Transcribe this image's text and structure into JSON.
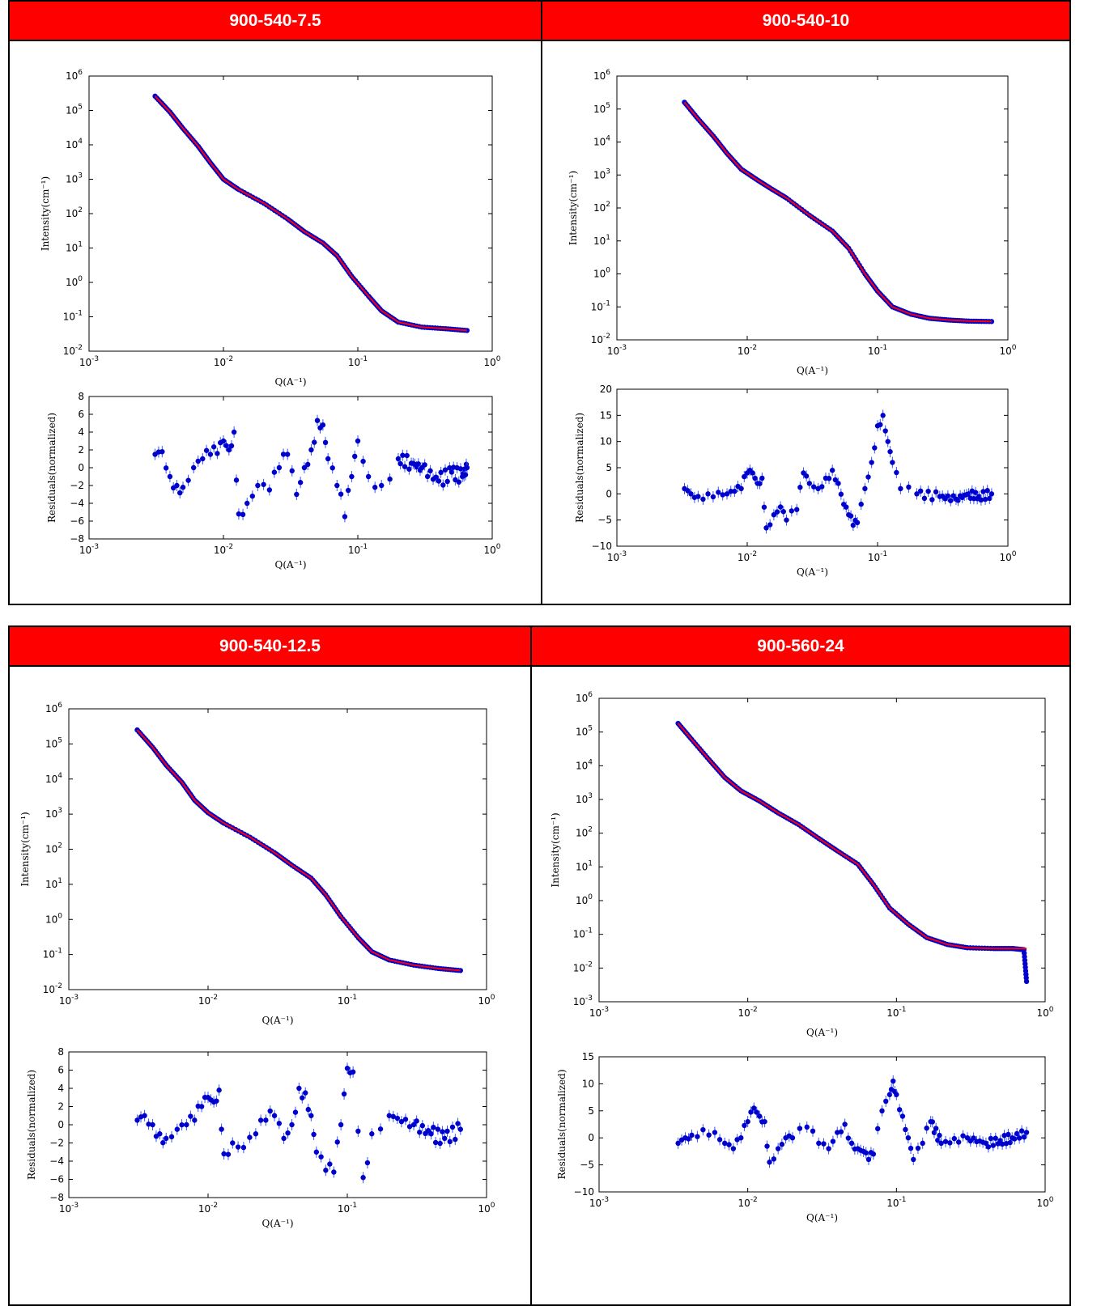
{
  "chart_data": [
    {
      "panel_title": "900-540-7.5",
      "type": "scatter",
      "main": {
        "xlabel": "Q(A⁻¹)",
        "ylabel": "Intensity(cm⁻¹)",
        "xscale": "log",
        "yscale": "log",
        "xlim": [
          0.001,
          1
        ],
        "ylim": [
          0.01,
          1000000
        ],
        "x_ticks": [
          "10^-3",
          "10^-2",
          "10^-1",
          "10^0"
        ],
        "y_ticks": [
          "10^-2",
          "10^-1",
          "10^0",
          "10^1",
          "10^2",
          "10^3",
          "10^4",
          "10^5",
          "10^6"
        ],
        "series": [
          {
            "color": "#0000cc",
            "marker": "circle",
            "x": [
              0.0031,
              0.004,
              0.005,
              0.0065,
              0.008,
              0.01,
              0.013,
              0.02,
              0.03,
              0.04,
              0.055,
              0.07,
              0.09,
              0.12,
              0.15,
              0.2,
              0.3,
              0.45,
              0.65
            ],
            "y": [
              260000,
              90000,
              30000,
              9000,
              3000,
              1000,
              500,
              200,
              70,
              30,
              14,
              6,
              1.5,
              0.4,
              0.15,
              0.07,
              0.05,
              0.045,
              0.04
            ]
          },
          {
            "color": "#ff0000",
            "marker": "line",
            "x": [
              0.0031,
              0.004,
              0.005,
              0.0065,
              0.008,
              0.01,
              0.013,
              0.02,
              0.03,
              0.04,
              0.055,
              0.07,
              0.09,
              0.12,
              0.15,
              0.2,
              0.3,
              0.45,
              0.65
            ],
            "y": [
              260000,
              90000,
              30000,
              9000,
              3000,
              1000,
              500,
              200,
              70,
              30,
              14,
              6,
              1.5,
              0.4,
              0.15,
              0.07,
              0.05,
              0.045,
              0.04
            ]
          }
        ]
      },
      "residuals": {
        "xlabel": "Q(A⁻¹)",
        "ylabel": "Residuals(normalized)",
        "xscale": "log",
        "xlim": [
          0.001,
          1
        ],
        "ylim": [
          -8,
          8
        ],
        "yticks": [
          -8,
          -6,
          -4,
          -2,
          0,
          2,
          4,
          6,
          8
        ],
        "x_ticks": [
          "10^-3",
          "10^-2",
          "10^-1",
          "10^0"
        ],
        "x": [
          0.0031,
          0.0035,
          0.004,
          0.0045,
          0.005,
          0.006,
          0.007,
          0.008,
          0.009,
          0.01,
          0.011,
          0.012,
          0.013,
          0.015,
          0.018,
          0.022,
          0.026,
          0.03,
          0.035,
          0.04,
          0.045,
          0.05,
          0.055,
          0.06,
          0.07,
          0.08,
          0.09,
          0.1,
          0.12,
          0.15,
          0.2,
          0.25,
          0.3,
          0.4,
          0.5,
          0.6,
          0.65
        ],
        "y": [
          1.5,
          1.8,
          -1,
          -2,
          -2.2,
          0,
          1,
          1.5,
          1.6,
          3,
          2,
          4,
          -5.2,
          -4,
          -2,
          -2.5,
          0,
          1.5,
          -3,
          0,
          2,
          5.3,
          4.8,
          1,
          -2,
          -5.5,
          -1,
          3,
          -1,
          -2,
          1,
          0.5,
          0,
          -1.5,
          -0.5,
          -1,
          0
        ]
      }
    },
    {
      "panel_title": "900-540-10",
      "type": "scatter",
      "main": {
        "xlabel": "Q(A⁻¹)",
        "ylabel": "Intensity(cm⁻¹)",
        "xscale": "log",
        "yscale": "log",
        "xlim": [
          0.001,
          1
        ],
        "ylim": [
          0.01,
          1000000
        ],
        "x_ticks": [
          "10^-3",
          "10^-2",
          "10^-1",
          "10^0"
        ],
        "y_ticks": [
          "10^-2",
          "10^-1",
          "10^0",
          "10^1",
          "10^2",
          "10^3",
          "10^4",
          "10^5",
          "10^6"
        ],
        "series": [
          {
            "color": "#0000cc",
            "marker": "circle",
            "x": [
              0.0033,
              0.0042,
              0.0055,
              0.007,
              0.009,
              0.012,
              0.015,
              0.02,
              0.03,
              0.045,
              0.06,
              0.08,
              0.1,
              0.13,
              0.18,
              0.25,
              0.35,
              0.5,
              0.75
            ],
            "y": [
              160000,
              50000,
              15000,
              4500,
              1500,
              700,
              400,
              200,
              60,
              20,
              6,
              1,
              0.3,
              0.1,
              0.06,
              0.045,
              0.04,
              0.037,
              0.036
            ]
          },
          {
            "color": "#ff0000",
            "marker": "line",
            "x": [
              0.0033,
              0.0042,
              0.0055,
              0.007,
              0.009,
              0.012,
              0.015,
              0.02,
              0.03,
              0.045,
              0.06,
              0.08,
              0.1,
              0.13,
              0.18,
              0.25,
              0.35,
              0.5,
              0.75
            ],
            "y": [
              160000,
              50000,
              15000,
              4500,
              1500,
              700,
              400,
              200,
              60,
              20,
              6,
              1,
              0.3,
              0.1,
              0.06,
              0.045,
              0.04,
              0.037,
              0.036
            ]
          }
        ]
      },
      "residuals": {
        "xlabel": "Q(A⁻¹)",
        "ylabel": "Residuals(normalized)",
        "xscale": "log",
        "xlim": [
          0.001,
          1
        ],
        "ylim": [
          -10,
          20
        ],
        "yticks": [
          -10,
          -5,
          0,
          5,
          10,
          15,
          20
        ],
        "x_ticks": [
          "10^-3",
          "10^-2",
          "10^-1",
          "10^0"
        ],
        "x": [
          0.0033,
          0.0037,
          0.0042,
          0.005,
          0.006,
          0.007,
          0.008,
          0.009,
          0.01,
          0.011,
          0.012,
          0.013,
          0.014,
          0.016,
          0.018,
          0.02,
          0.024,
          0.027,
          0.03,
          0.035,
          0.04,
          0.045,
          0.05,
          0.055,
          0.06,
          0.065,
          0.07,
          0.08,
          0.09,
          0.1,
          0.11,
          0.12,
          0.13,
          0.15,
          0.2,
          0.3,
          0.4,
          0.5,
          0.6,
          0.75
        ],
        "y": [
          1,
          0,
          -0.5,
          0,
          0.3,
          0,
          0.5,
          1,
          4,
          4,
          2,
          3,
          -6.5,
          -4,
          -2.5,
          -5,
          -3,
          4,
          2,
          1,
          3,
          4.5,
          2,
          -2,
          -4,
          -6,
          -5.5,
          1,
          6,
          13,
          15,
          10,
          6,
          1,
          0,
          -0.5,
          -1,
          0,
          -0.5,
          0
        ]
      }
    },
    {
      "panel_title": "900-540-12.5",
      "type": "scatter",
      "main": {
        "xlabel": "Q(A⁻¹)",
        "ylabel": "Intensity(cm⁻¹)",
        "xscale": "log",
        "yscale": "log",
        "xlim": [
          0.001,
          1
        ],
        "ylim": [
          0.01,
          1000000
        ],
        "x_ticks": [
          "10^-3",
          "10^-2",
          "10^-1",
          "10^0"
        ],
        "y_ticks": [
          "10^-2",
          "10^-1",
          "10^0",
          "10^1",
          "10^2",
          "10^3",
          "10^4",
          "10^5",
          "10^6"
        ],
        "series": [
          {
            "color": "#0000cc",
            "marker": "circle",
            "x": [
              0.0031,
              0.004,
              0.005,
              0.0065,
              0.008,
              0.01,
              0.013,
              0.02,
              0.03,
              0.04,
              0.055,
              0.07,
              0.09,
              0.12,
              0.15,
              0.2,
              0.3,
              0.45,
              0.65
            ],
            "y": [
              250000,
              80000,
              25000,
              8000,
              2500,
              1100,
              550,
              220,
              80,
              35,
              15,
              5,
              1.2,
              0.3,
              0.12,
              0.07,
              0.05,
              0.04,
              0.035
            ]
          },
          {
            "color": "#ff0000",
            "marker": "line",
            "x": [
              0.0031,
              0.004,
              0.005,
              0.0065,
              0.008,
              0.01,
              0.013,
              0.02,
              0.03,
              0.04,
              0.055,
              0.07,
              0.09,
              0.12,
              0.15,
              0.2,
              0.3,
              0.45,
              0.65
            ],
            "y": [
              250000,
              80000,
              25000,
              8000,
              2500,
              1100,
              550,
              220,
              80,
              35,
              15,
              5,
              1.2,
              0.3,
              0.12,
              0.07,
              0.05,
              0.04,
              0.035
            ]
          }
        ]
      },
      "residuals": {
        "xlabel": "Q(A⁻¹)",
        "ylabel": "Residuals(normalized)",
        "xscale": "log",
        "xlim": [
          0.001,
          1
        ],
        "ylim": [
          -8,
          8
        ],
        "yticks": [
          -8,
          -6,
          -4,
          -2,
          0,
          2,
          4,
          6,
          8
        ],
        "x_ticks": [
          "10^-3",
          "10^-2",
          "10^-1",
          "10^0"
        ],
        "x": [
          0.0031,
          0.0035,
          0.004,
          0.0045,
          0.005,
          0.006,
          0.007,
          0.008,
          0.009,
          0.01,
          0.011,
          0.012,
          0.013,
          0.015,
          0.018,
          0.022,
          0.026,
          0.03,
          0.035,
          0.04,
          0.045,
          0.05,
          0.055,
          0.06,
          0.07,
          0.08,
          0.09,
          0.1,
          0.11,
          0.13,
          0.15,
          0.2,
          0.3,
          0.4,
          0.5,
          0.65
        ],
        "y": [
          0.5,
          1,
          0,
          -1,
          -1.5,
          -0.5,
          0,
          0.5,
          2,
          3,
          2.5,
          3.8,
          -3.2,
          -2,
          -2.5,
          -1,
          0.5,
          1,
          -1.5,
          0,
          4,
          3.5,
          1,
          -3,
          -5,
          -5.2,
          0,
          6.2,
          5.8,
          -5.8,
          -1,
          1,
          0,
          -1,
          -1.5,
          -0.5
        ]
      }
    },
    {
      "panel_title": "900-560-24",
      "type": "scatter",
      "main": {
        "xlabel": "Q(A⁻¹)",
        "ylabel": "Intensity(cm⁻¹)",
        "xscale": "log",
        "yscale": "log",
        "xlim": [
          0.001,
          1
        ],
        "ylim": [
          0.001,
          1000000
        ],
        "x_ticks": [
          "10^-3",
          "10^-2",
          "10^-1",
          "10^0"
        ],
        "y_ticks": [
          "10^-3",
          "10^-2",
          "10^-1",
          "10^0",
          "10^1",
          "10^2",
          "10^3",
          "10^4",
          "10^5",
          "10^6"
        ],
        "series": [
          {
            "color": "#0000cc",
            "marker": "circle",
            "x": [
              0.0034,
              0.0042,
              0.0055,
              0.007,
              0.009,
              0.012,
              0.016,
              0.022,
              0.03,
              0.04,
              0.055,
              0.07,
              0.09,
              0.12,
              0.16,
              0.22,
              0.3,
              0.45,
              0.6,
              0.72,
              0.75
            ],
            "y": [
              180000,
              60000,
              15000,
              4500,
              1800,
              900,
              400,
              180,
              70,
              30,
              12,
              3,
              0.6,
              0.2,
              0.08,
              0.05,
              0.04,
              0.038,
              0.038,
              0.035,
              0.004
            ]
          },
          {
            "color": "#ff0000",
            "marker": "line",
            "x": [
              0.0034,
              0.0042,
              0.0055,
              0.007,
              0.009,
              0.012,
              0.016,
              0.022,
              0.03,
              0.04,
              0.055,
              0.07,
              0.09,
              0.12,
              0.16,
              0.22,
              0.3,
              0.45,
              0.6,
              0.75
            ],
            "y": [
              180000,
              60000,
              15000,
              4500,
              1800,
              900,
              400,
              180,
              70,
              30,
              12,
              3,
              0.6,
              0.2,
              0.08,
              0.05,
              0.04,
              0.038,
              0.038,
              0.038
            ]
          }
        ]
      },
      "residuals": {
        "xlabel": "Q(A⁻¹)",
        "ylabel": "Residuals(normalized)",
        "xscale": "log",
        "xlim": [
          0.001,
          1
        ],
        "ylim": [
          -10,
          15
        ],
        "yticks": [
          -10,
          -5,
          0,
          5,
          10,
          15
        ],
        "x_ticks": [
          "10^-3",
          "10^-2",
          "10^-1",
          "10^0"
        ],
        "x": [
          0.0034,
          0.0038,
          0.0042,
          0.005,
          0.006,
          0.007,
          0.008,
          0.009,
          0.01,
          0.011,
          0.012,
          0.013,
          0.014,
          0.016,
          0.018,
          0.02,
          0.025,
          0.03,
          0.035,
          0.04,
          0.045,
          0.05,
          0.055,
          0.06,
          0.065,
          0.07,
          0.08,
          0.09,
          0.095,
          0.1,
          0.11,
          0.12,
          0.13,
          0.15,
          0.17,
          0.2,
          0.3,
          0.4,
          0.5,
          0.6,
          0.75
        ],
        "y": [
          -1,
          0,
          0.5,
          1.5,
          1,
          -1,
          -2,
          0,
          3,
          5.5,
          4,
          3,
          -4.5,
          -2,
          0,
          0,
          2,
          -1,
          -2,
          1,
          2.5,
          -1,
          -2,
          -2.5,
          -4,
          -3,
          5,
          8,
          10.5,
          8,
          4,
          0,
          -4,
          -1,
          3,
          -1,
          0,
          -1,
          -0.5,
          0,
          1
        ]
      }
    }
  ]
}
